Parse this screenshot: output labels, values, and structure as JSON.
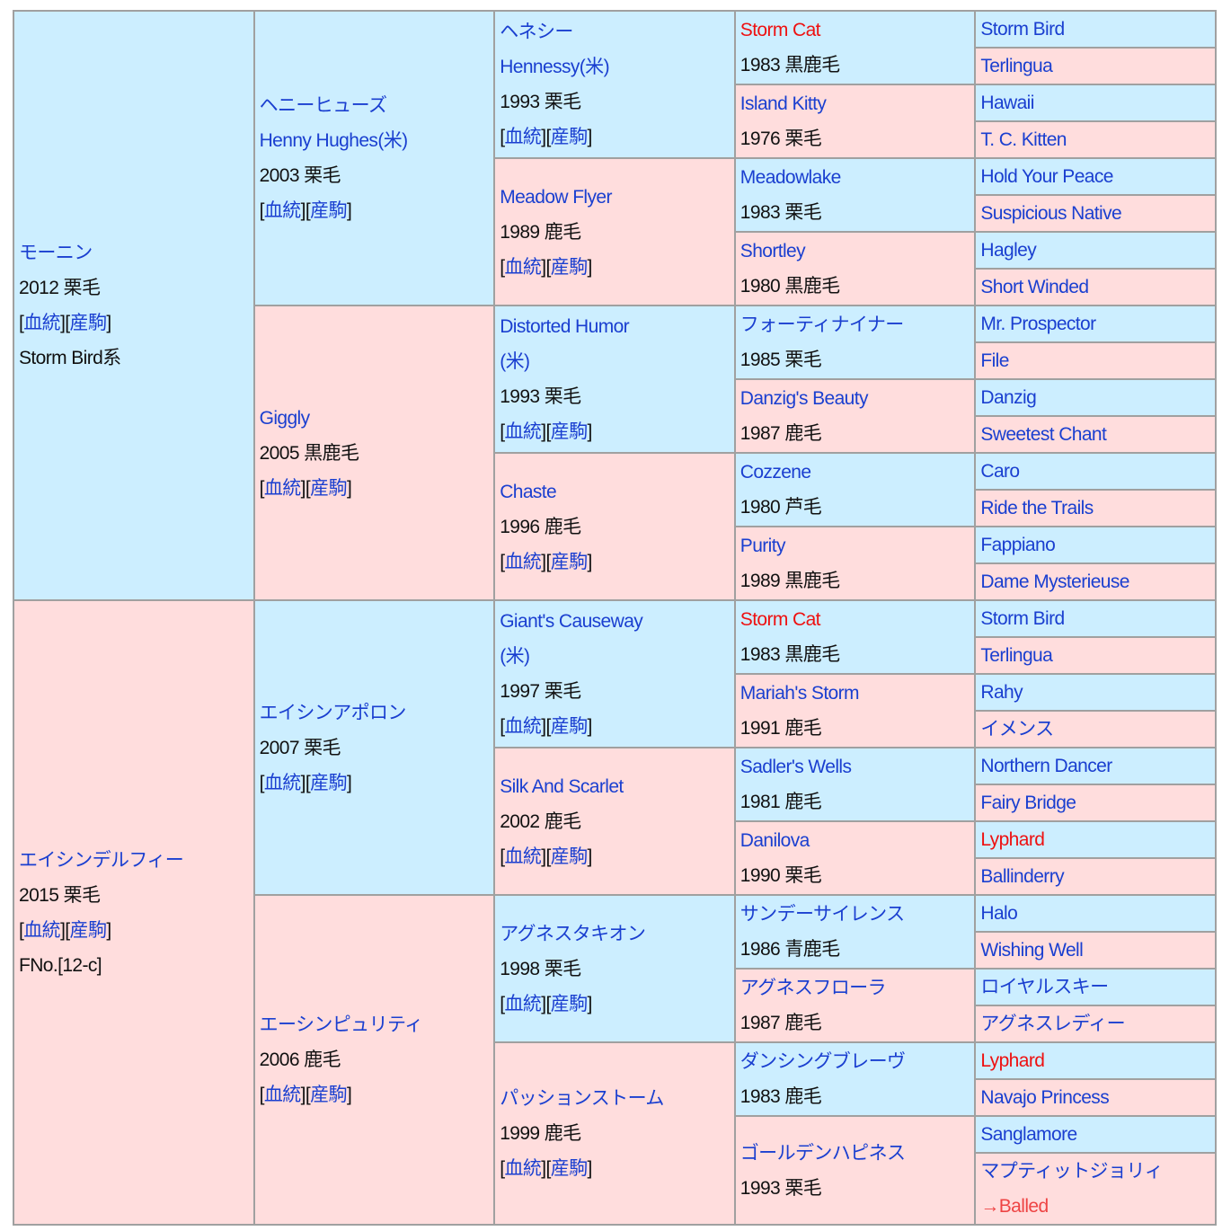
{
  "colors": {
    "sire_bg": "#cceeff",
    "dam_bg": "#ffdddd",
    "link": "#1a3fd0",
    "inbreed": "#ee1111",
    "border": "#a0a0a0"
  },
  "link_labels": {
    "pedigree": "血統",
    "progeny": "産駒"
  },
  "gen1": [
    {
      "name": "モーニン",
      "info": "2012 栗毛",
      "links": true,
      "extra": "Storm Bird系"
    },
    {
      "name": "エイシンデルフィー",
      "info": "2015 栗毛",
      "links": true,
      "extra": "FNo.[12-c]"
    }
  ],
  "gen2": [
    {
      "name": "ヘニーヒューズ\nHenny Hughes(米)",
      "info": "2003 栗毛",
      "links": true
    },
    {
      "name": "Giggly",
      "info": "2005 黒鹿毛",
      "links": true
    },
    {
      "name": "エイシンアポロン",
      "info": "2007 栗毛",
      "links": true
    },
    {
      "name": "エーシンピュリティ",
      "info": "2006 鹿毛",
      "links": true
    }
  ],
  "gen3": [
    {
      "name": "ヘネシー\nHennessy(米)",
      "info": "1993 栗毛",
      "links": true
    },
    {
      "name": "Meadow Flyer",
      "info": "1989 鹿毛",
      "links": true
    },
    {
      "name": "Distorted Humor\n(米)",
      "info": "1993 栗毛",
      "links": true
    },
    {
      "name": "Chaste",
      "info": "1996 鹿毛",
      "links": true
    },
    {
      "name": "Giant's Causeway\n(米)",
      "info": "1997 栗毛",
      "links": true
    },
    {
      "name": "Silk And Scarlet",
      "info": "2002 鹿毛",
      "links": true
    },
    {
      "name": "アグネスタキオン",
      "info": "1998 栗毛",
      "links": true
    },
    {
      "name": "パッションストーム",
      "info": "1999 鹿毛",
      "links": true
    }
  ],
  "gen4": [
    {
      "name": "Storm Cat",
      "info": "1983 黒鹿毛",
      "red": true
    },
    {
      "name": "Island Kitty",
      "info": "1976 栗毛"
    },
    {
      "name": "Meadowlake",
      "info": "1983 栗毛"
    },
    {
      "name": "Shortley",
      "info": "1980 黒鹿毛"
    },
    {
      "name": "フォーティナイナー",
      "info": "1985 栗毛"
    },
    {
      "name": "Danzig's Beauty",
      "info": "1987 鹿毛"
    },
    {
      "name": "Cozzene",
      "info": "1980 芦毛"
    },
    {
      "name": "Purity",
      "info": "1989 黒鹿毛"
    },
    {
      "name": "Storm Cat",
      "info": "1983 黒鹿毛",
      "red": true
    },
    {
      "name": "Mariah's Storm",
      "info": "1991 鹿毛"
    },
    {
      "name": "Sadler's Wells",
      "info": "1981 鹿毛"
    },
    {
      "name": "Danilova",
      "info": "1990 栗毛"
    },
    {
      "name": "サンデーサイレンス",
      "info": "1986 青鹿毛"
    },
    {
      "name": "アグネスフローラ",
      "info": "1987 鹿毛"
    },
    {
      "name": "ダンシングブレーヴ",
      "info": "1983 鹿毛"
    },
    {
      "name": "ゴールデンハピネス",
      "info": "1993 栗毛"
    }
  ],
  "gen5": [
    {
      "name": "Storm Bird"
    },
    {
      "name": "Terlingua"
    },
    {
      "name": "Hawaii"
    },
    {
      "name": "T. C. Kitten"
    },
    {
      "name": "Hold Your Peace"
    },
    {
      "name": "Suspicious Native"
    },
    {
      "name": "Hagley"
    },
    {
      "name": "Short Winded"
    },
    {
      "name": "Mr. Prospector"
    },
    {
      "name": "File"
    },
    {
      "name": "Danzig"
    },
    {
      "name": "Sweetest Chant"
    },
    {
      "name": "Caro"
    },
    {
      "name": "Ride the Trails"
    },
    {
      "name": "Fappiano"
    },
    {
      "name": "Dame Mysterieuse"
    },
    {
      "name": "Storm Bird"
    },
    {
      "name": "Terlingua"
    },
    {
      "name": "Rahy"
    },
    {
      "name": "イメンス"
    },
    {
      "name": "Northern Dancer"
    },
    {
      "name": "Fairy Bridge"
    },
    {
      "name": "Lyphard",
      "red": true
    },
    {
      "name": "Ballinderry"
    },
    {
      "name": "Halo"
    },
    {
      "name": "Wishing Well"
    },
    {
      "name": "ロイヤルスキー"
    },
    {
      "name": "アグネスレディー"
    },
    {
      "name": "Lyphard",
      "red": true
    },
    {
      "name": "Navajo Princess"
    },
    {
      "name": "Sanglamore"
    },
    {
      "name": "マプティットジョリィ",
      "note": "→Balled"
    }
  ]
}
